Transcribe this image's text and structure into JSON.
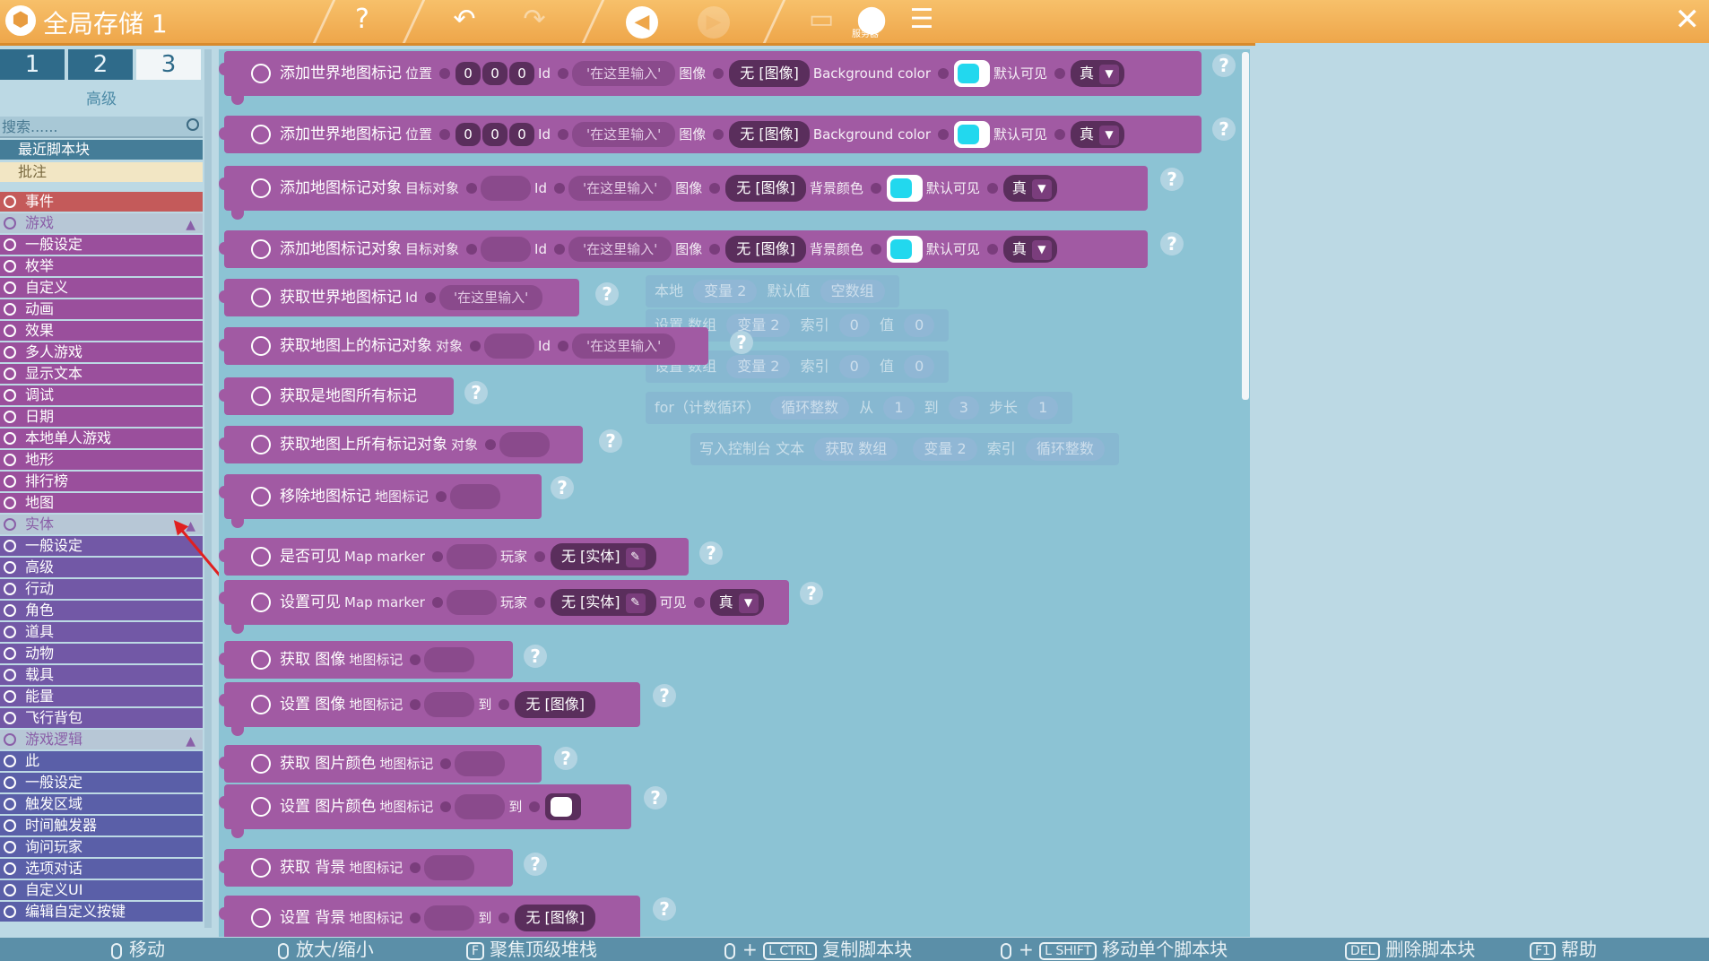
{
  "window": {
    "title": "全局存储 1",
    "logo_icon": "game-logo-icon",
    "close_label": "✕"
  },
  "toolbar": {
    "help_label": "?",
    "undo_label": "↶",
    "redo_label": "↷",
    "server_label": "服务器"
  },
  "left_panel": {
    "tabs": [
      {
        "label": "1"
      },
      {
        "label": "2"
      },
      {
        "label": "3"
      }
    ],
    "tab_subtitle": "高级",
    "search": {
      "placeholder": "搜索......"
    },
    "quick": [
      {
        "label": "最近脚本块"
      },
      {
        "label": "批注"
      }
    ],
    "categories": [
      {
        "label": "事件",
        "kind": "event"
      },
      {
        "label": "游戏",
        "kind": "group"
      },
      {
        "label": "一般设定",
        "kind": "game"
      },
      {
        "label": "枚举",
        "kind": "game"
      },
      {
        "label": "自定义",
        "kind": "game"
      },
      {
        "label": "动画",
        "kind": "game"
      },
      {
        "label": "效果",
        "kind": "game"
      },
      {
        "label": "多人游戏",
        "kind": "game"
      },
      {
        "label": "显示文本",
        "kind": "game"
      },
      {
        "label": "调试",
        "kind": "game"
      },
      {
        "label": "日期",
        "kind": "game"
      },
      {
        "label": "本地单人游戏",
        "kind": "game"
      },
      {
        "label": "地形",
        "kind": "game"
      },
      {
        "label": "排行榜",
        "kind": "game"
      },
      {
        "label": "地图",
        "kind": "game"
      },
      {
        "label": "实体",
        "kind": "group"
      },
      {
        "label": "一般设定",
        "kind": "entity"
      },
      {
        "label": "高级",
        "kind": "entity"
      },
      {
        "label": "行动",
        "kind": "entity"
      },
      {
        "label": "角色",
        "kind": "entity"
      },
      {
        "label": "道具",
        "kind": "entity"
      },
      {
        "label": "动物",
        "kind": "entity"
      },
      {
        "label": "载具",
        "kind": "entity"
      },
      {
        "label": "能量",
        "kind": "entity"
      },
      {
        "label": "飞行背包",
        "kind": "entity"
      },
      {
        "label": "游戏逻辑",
        "kind": "group"
      },
      {
        "label": "此",
        "kind": "logic"
      },
      {
        "label": "一般设定",
        "kind": "logic"
      },
      {
        "label": "触发区域",
        "kind": "logic"
      },
      {
        "label": "时间触发器",
        "kind": "logic"
      },
      {
        "label": "询问玩家",
        "kind": "logic"
      },
      {
        "label": "选项对话",
        "kind": "logic"
      },
      {
        "label": "自定义UI",
        "kind": "logic"
      },
      {
        "label": "编辑自定义按键",
        "kind": "logic"
      }
    ]
  },
  "ghost_blocks": {
    "g1": {
      "a": "本地",
      "b": "变量 2",
      "c": "默认值",
      "d": "空数组"
    },
    "g2": {
      "a": "设置 数组",
      "b": "变量 2",
      "c": "索引",
      "d": "0",
      "e": "值",
      "f": "0"
    },
    "g3": {
      "a": "设置 数组",
      "b": "变量 2",
      "c": "索引",
      "d": "0",
      "e": "值",
      "f": "0"
    },
    "g4": {
      "a": "for（计数循环）",
      "b": "循环整数",
      "c": "从",
      "d": "1",
      "e": "到",
      "f": "3",
      "g": "步长",
      "h": "1"
    },
    "g5": {
      "a": "写入控制台 文本",
      "b": "获取 数组",
      "c": "变量 2",
      "d": "索引",
      "e": "循环整数"
    }
  },
  "blocks": {
    "b1": {
      "label": "添加世界地图标记",
      "pos": "位置",
      "x": "0",
      "y": "0",
      "z": "0",
      "id": "Id",
      "ph": "'在这里输入'",
      "img": "图像",
      "img_val": "无 [图像]",
      "bg": "Background color",
      "vis": "默认可见",
      "vis_val": "真"
    },
    "b2": {
      "label": "添加世界地图标记",
      "pos": "位置",
      "x": "0",
      "y": "0",
      "z": "0",
      "id": "Id",
      "ph": "'在这里输入'",
      "img": "图像",
      "img_val": "无 [图像]",
      "bg": "Background color",
      "vis": "默认可见",
      "vis_val": "真"
    },
    "b3": {
      "label": "添加地图标记对象",
      "target": "目标对象",
      "id": "Id",
      "ph": "'在这里输入'",
      "img": "图像",
      "img_val": "无 [图像]",
      "bg": "背景颜色",
      "vis": "默认可见",
      "vis_val": "真"
    },
    "b4": {
      "label": "添加地图标记对象",
      "target": "目标对象",
      "id": "Id",
      "ph": "'在这里输入'",
      "img": "图像",
      "img_val": "无 [图像]",
      "bg": "背景颜色",
      "vis": "默认可见",
      "vis_val": "真"
    },
    "b5": {
      "label": "获取世界地图标记",
      "id": "Id",
      "ph": "'在这里输入'"
    },
    "b6": {
      "label": "获取地图上的标记对象",
      "obj": "对象",
      "id": "Id",
      "ph": "'在这里输入'"
    },
    "b7": {
      "label": "获取是地图所有标记"
    },
    "b8": {
      "label": "获取地图上所有标记对象",
      "obj": "对象"
    },
    "b9": {
      "label": "移除地图标记",
      "marker": "地图标记"
    },
    "b10": {
      "label": "是否可见",
      "marker": "Map marker",
      "player": "玩家",
      "player_val": "无 [实体]"
    },
    "b11": {
      "label": "设置可见",
      "marker": "Map marker",
      "player": "玩家",
      "player_val": "无 [实体]",
      "vis": "可见",
      "vis_val": "真"
    },
    "b12": {
      "label": "获取 图像",
      "marker": "地图标记"
    },
    "b13": {
      "label": "设置 图像",
      "marker": "地图标记",
      "to": "到",
      "img_val": "无 [图像]"
    },
    "b14": {
      "label": "获取 图片颜色",
      "marker": "地图标记"
    },
    "b15": {
      "label": "设置 图片颜色",
      "marker": "地图标记",
      "to": "到"
    },
    "b16": {
      "label": "获取 背景",
      "marker": "地图标记"
    },
    "b17": {
      "label": "设置 背景",
      "marker": "地图标记",
      "to": "到",
      "img_val": "无 [图像]"
    }
  },
  "bottom_bar": {
    "move": "移动",
    "zoom": "放大/缩小",
    "focus_key": "F",
    "focus": "聚焦顶级堆栈",
    "ctrl_key": "L CTRL",
    "copy": "复制脚本块",
    "shift_key": "L SHIFT",
    "move_single": "移动单个脚本块",
    "del_key": "DEL",
    "delete": "删除脚本块",
    "f1_key": "F1",
    "help": "帮助"
  },
  "colors": {
    "accent": "#eea64a",
    "block": "#a15aa3",
    "cyan": "#22d8ee",
    "arrow": "#e02020"
  }
}
